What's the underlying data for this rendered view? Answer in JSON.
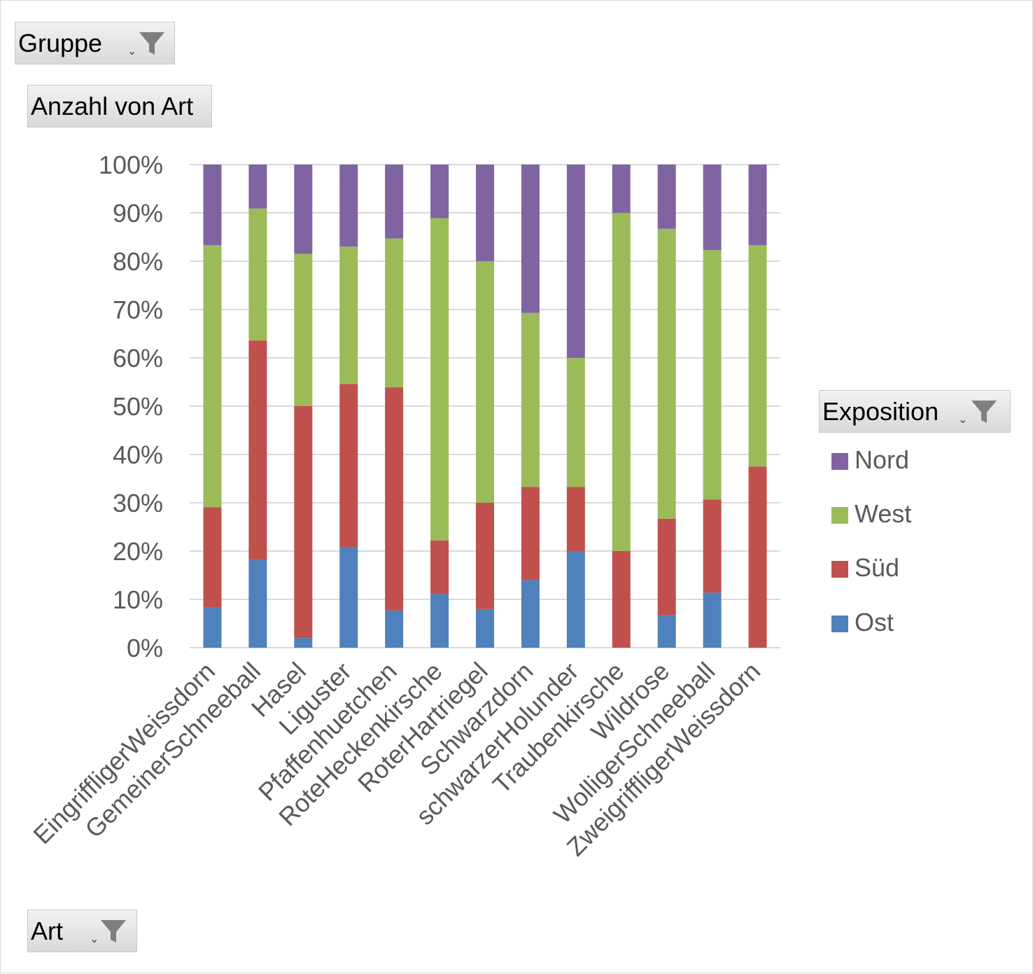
{
  "field_buttons": {
    "filter": {
      "label": "Gruppe",
      "icon": "funnel-icon"
    },
    "values": {
      "label": "Anzahl von Art"
    },
    "legend_field": {
      "label": "Exposition",
      "icon": "funnel-icon"
    },
    "axis_field": {
      "label": "Art",
      "icon": "funnel-icon"
    }
  },
  "colors": {
    "Ost": "#4f81bd",
    "Süd": "#c0504d",
    "West": "#9bbb59",
    "Nord": "#8064a2",
    "gridline": "#d9d9d9",
    "axis_text": "#595959"
  },
  "chart_data": {
    "type": "bar",
    "stacking": "percent",
    "categories": [
      "EingriffligerWeissdorn",
      "GemeinerSchneeball",
      "Hasel",
      "Liguster",
      "Pfaffenhuetchen",
      "RoteHeckenkirsche",
      "RoterHartriegel",
      "Schwarzdorn",
      "schwarzerHolunder",
      "Traubenkirsche",
      "Wildrose",
      "WolligerSchneeball",
      "ZweigriffligerWeissdorn"
    ],
    "series": [
      {
        "name": "Ost",
        "values": [
          8.3,
          18.2,
          2.0,
          20.8,
          7.7,
          11.1,
          8.0,
          14.0,
          20.0,
          0.0,
          6.7,
          11.4,
          0.0
        ]
      },
      {
        "name": "Süd",
        "values": [
          20.8,
          45.4,
          48.0,
          33.8,
          46.2,
          11.1,
          22.0,
          19.3,
          13.3,
          20.0,
          20.0,
          19.3,
          37.5
        ]
      },
      {
        "name": "West",
        "values": [
          54.2,
          27.3,
          31.5,
          28.4,
          30.8,
          66.7,
          50.0,
          36.0,
          26.7,
          70.0,
          60.0,
          51.6,
          45.8
        ]
      },
      {
        "name": "Nord",
        "values": [
          16.7,
          9.1,
          18.5,
          17.0,
          15.3,
          11.1,
          20.0,
          30.7,
          40.0,
          10.0,
          13.3,
          17.7,
          16.7
        ]
      }
    ],
    "ylim": [
      0,
      100
    ],
    "yticks": [
      "0%",
      "10%",
      "20%",
      "30%",
      "40%",
      "50%",
      "60%",
      "70%",
      "80%",
      "90%",
      "100%"
    ],
    "grid": true,
    "legend_position": "right",
    "legend_order": [
      "Nord",
      "West",
      "Süd",
      "Ost"
    ]
  }
}
